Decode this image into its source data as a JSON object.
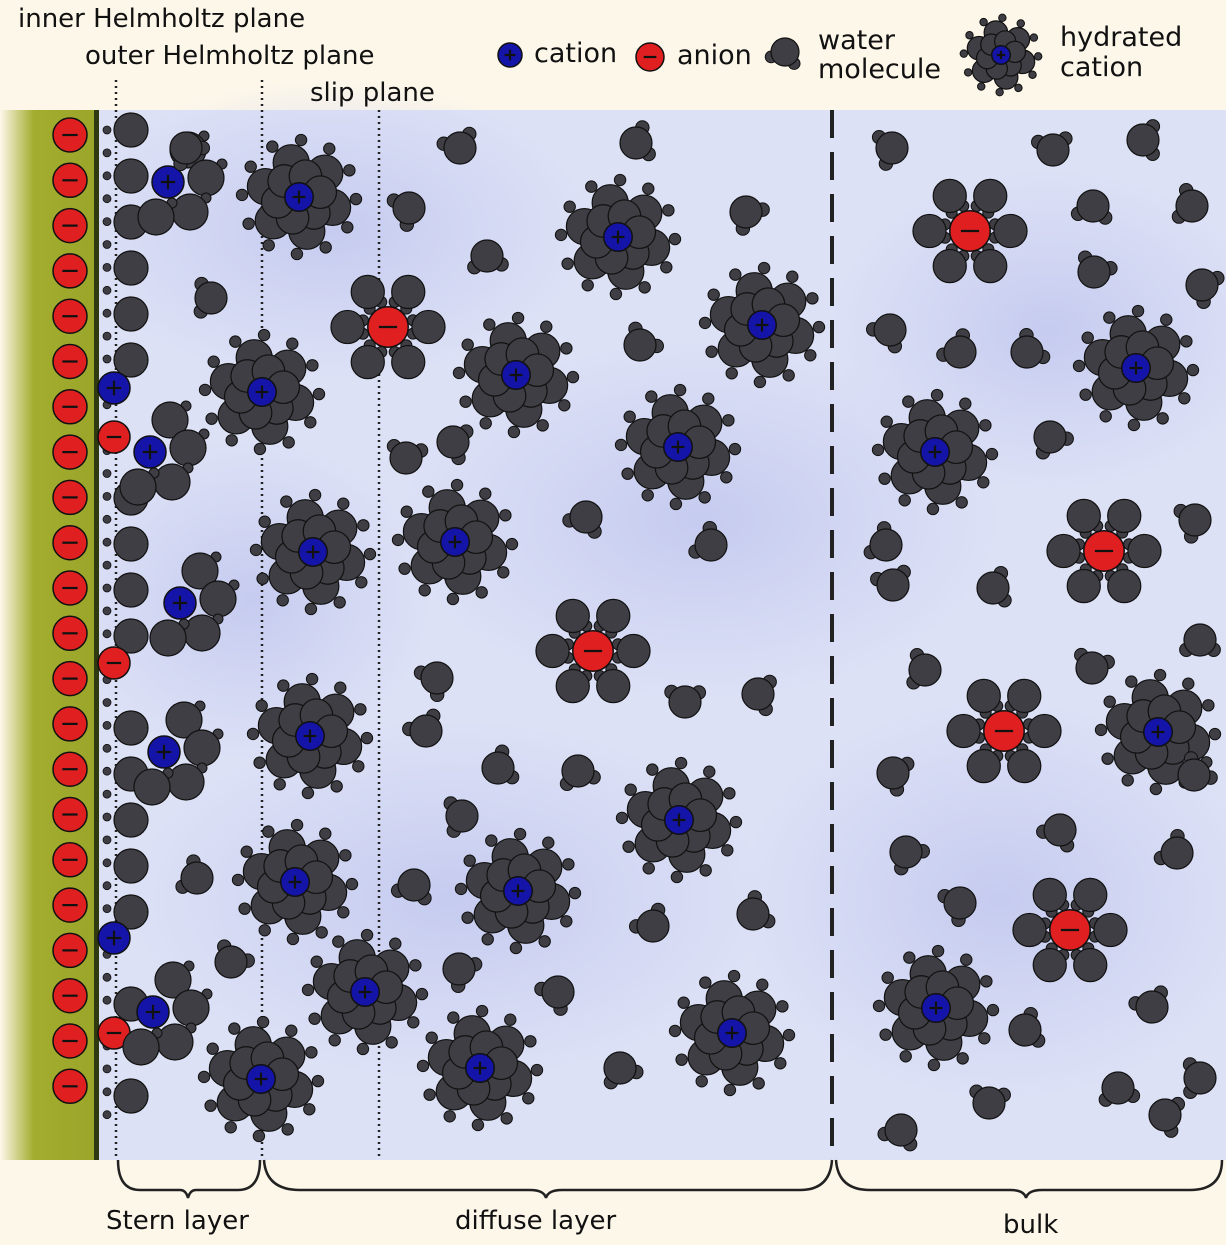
{
  "planes": {
    "inner_helmholtz": "inner Helmholtz plane",
    "outer_helmholtz": "outer Helmholtz plane",
    "slip": "slip plane"
  },
  "legend": {
    "cation": "cation",
    "anion": "anion",
    "water_line1": "water",
    "water_line2": "molecule",
    "hydrated_line1": "hydrated",
    "hydrated_line2": "cation"
  },
  "regions": {
    "stern": "Stern layer",
    "diffuse": "diffuse layer",
    "bulk": "bulk"
  },
  "colors": {
    "electrode": "#a3ad2e",
    "cation": "#1414a8",
    "anion": "#e02020",
    "water": "#3e3e44",
    "solution": "#d4d9f4",
    "background": "#fdf7ea"
  }
}
